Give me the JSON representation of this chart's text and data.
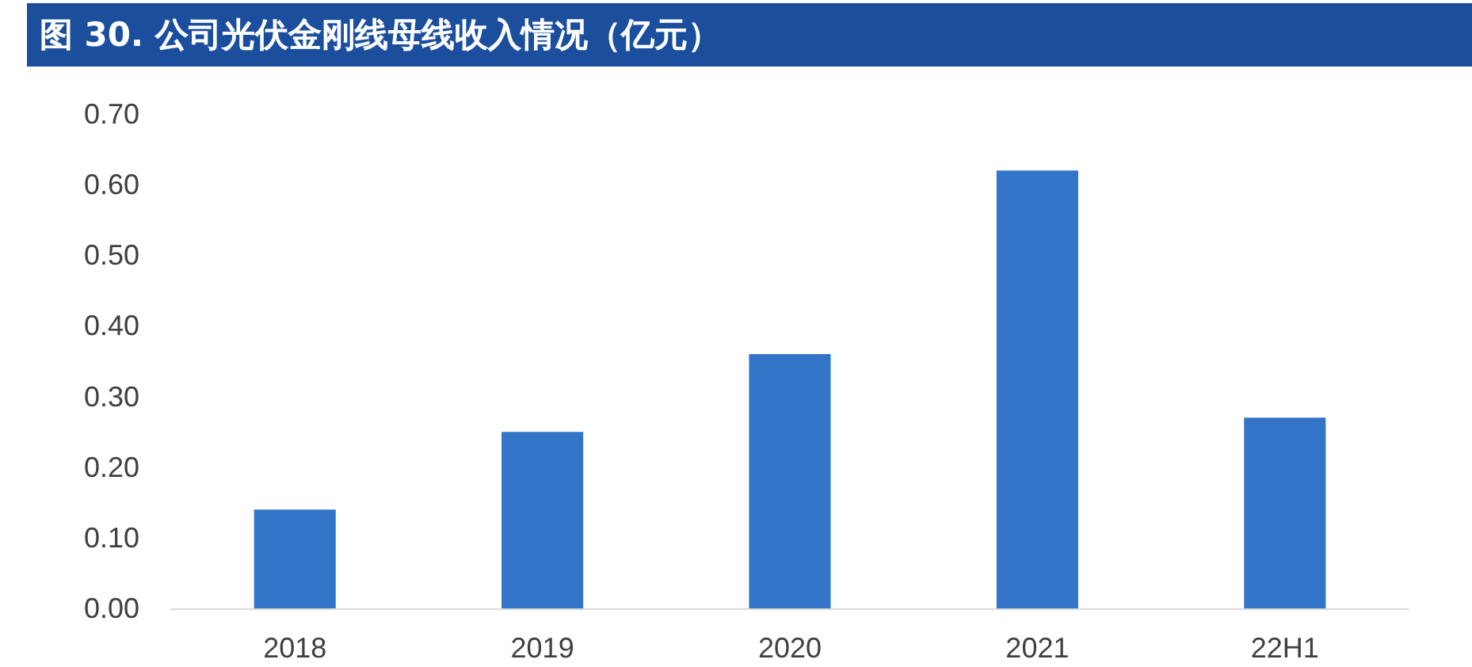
{
  "chart_data": {
    "type": "bar",
    "title": "图 30. 公司光伏金刚线母线收入情况（亿元）",
    "categories": [
      "2018",
      "2019",
      "2020",
      "2021",
      "22H1"
    ],
    "values": [
      0.14,
      0.25,
      0.36,
      0.62,
      0.27
    ],
    "color": "#3275c8",
    "ylim": [
      0,
      0.7
    ],
    "yticks": [
      {
        "value": 0,
        "label": "0.00"
      },
      {
        "value": 0.1,
        "label": "0.10"
      },
      {
        "value": 0.2,
        "label": "0.20"
      },
      {
        "value": 0.3,
        "label": "0.30"
      },
      {
        "value": 0.4,
        "label": "0.40"
      },
      {
        "value": 0.5,
        "label": "0.50"
      },
      {
        "value": 0.6,
        "label": "0.60"
      },
      {
        "value": 0.7,
        "label": "0.70"
      }
    ],
    "grid": false
  }
}
